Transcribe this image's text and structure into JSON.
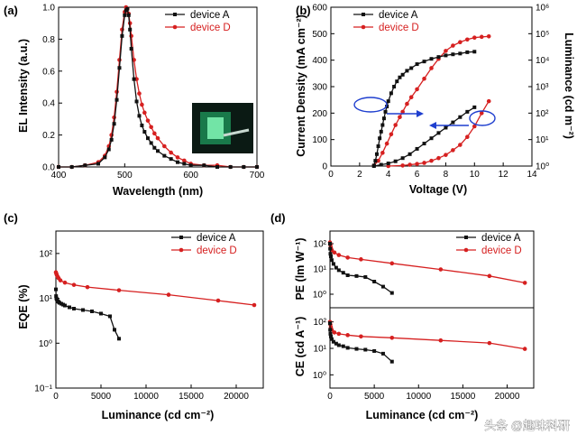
{
  "colors": {
    "device_A": "#111111",
    "device_D": "#d62020",
    "arrow": "#1f3fcf"
  },
  "watermark": "头条 @趣味科研",
  "chart_data": [
    {
      "panel": "(a)",
      "type": "line",
      "xlabel": "Wavelength (nm)",
      "ylabel": "EL Intensity (a.u.)",
      "xlim": [
        400,
        700
      ],
      "ylim": [
        0,
        1.0
      ],
      "xticks": [
        400,
        500,
        600,
        700
      ],
      "yticks": [
        0.0,
        0.2,
        0.4,
        0.6,
        0.8,
        1.0
      ],
      "xtick_labels": [
        "400",
        "500",
        "600",
        "700"
      ],
      "ytick_labels": [
        "0.0",
        "0.2",
        "0.4",
        "0.6",
        "0.8",
        "1.0"
      ],
      "legend": [
        "device A",
        "device D"
      ],
      "inset": "photo of green-emitting device",
      "series": [
        {
          "name": "device A",
          "x": [
            400,
            420,
            440,
            460,
            470,
            476,
            480,
            484,
            488,
            492,
            496,
            500,
            502,
            504,
            506,
            508,
            510,
            514,
            518,
            522,
            526,
            530,
            535,
            540,
            545,
            550,
            560,
            570,
            580,
            590,
            600,
            620,
            640,
            660,
            680,
            700
          ],
          "y": [
            0,
            0,
            0.01,
            0.02,
            0.06,
            0.11,
            0.17,
            0.27,
            0.42,
            0.62,
            0.82,
            0.95,
            0.98,
            0.99,
            0.95,
            0.86,
            0.74,
            0.55,
            0.41,
            0.32,
            0.26,
            0.22,
            0.18,
            0.15,
            0.12,
            0.1,
            0.07,
            0.05,
            0.03,
            0.02,
            0.01,
            0.01,
            0,
            0,
            0,
            0
          ]
        },
        {
          "name": "device D",
          "x": [
            400,
            420,
            440,
            460,
            470,
            476,
            480,
            484,
            488,
            492,
            496,
            500,
            502,
            504,
            506,
            508,
            510,
            514,
            518,
            522,
            526,
            530,
            535,
            540,
            545,
            550,
            560,
            570,
            580,
            590,
            600,
            620,
            640,
            660,
            680,
            700
          ],
          "y": [
            0,
            0,
            0.01,
            0.03,
            0.07,
            0.13,
            0.2,
            0.31,
            0.47,
            0.67,
            0.86,
            0.97,
            1.0,
            0.99,
            0.96,
            0.9,
            0.82,
            0.67,
            0.55,
            0.46,
            0.39,
            0.34,
            0.29,
            0.25,
            0.21,
            0.18,
            0.13,
            0.09,
            0.06,
            0.04,
            0.02,
            0.01,
            0.01,
            0,
            0,
            0
          ]
        }
      ]
    },
    {
      "panel": "(b)",
      "type": "line",
      "xlabel": "Voltage (V)",
      "ylabel": "Current Density (mA cm⁻²)",
      "y2label": "Luminance (cd m⁻²)",
      "xlim": [
        0,
        14
      ],
      "ylim": [
        0,
        600
      ],
      "y2lim_log10": [
        0,
        6
      ],
      "xticks": [
        0,
        2,
        4,
        6,
        8,
        10,
        12,
        14
      ],
      "yticks": [
        0,
        100,
        200,
        300,
        400,
        500,
        600
      ],
      "xtick_labels": [
        "0",
        "2",
        "4",
        "6",
        "8",
        "10",
        "12",
        "14"
      ],
      "ytick_labels": [
        "0",
        "100",
        "200",
        "300",
        "400",
        "500",
        "600"
      ],
      "y2tick_labels": [
        "10⁰",
        "10¹",
        "10²",
        "10³",
        "10⁴",
        "10⁵",
        "10⁶"
      ],
      "legend": [
        "device A",
        "device D"
      ],
      "current_density": [
        {
          "name": "device A",
          "x": [
            3,
            3.1,
            3.2,
            3.3,
            3.4,
            3.5,
            3.6,
            3.7,
            3.8,
            3.9,
            4,
            4.2,
            4.4,
            4.6,
            4.8,
            5,
            5.3,
            5.6,
            6,
            6.5,
            7,
            7.5,
            8,
            8.5,
            9,
            9.5,
            10
          ],
          "y": [
            2,
            20,
            45,
            75,
            105,
            130,
            155,
            180,
            205,
            225,
            245,
            275,
            300,
            320,
            335,
            345,
            360,
            370,
            385,
            395,
            405,
            412,
            418,
            422,
            425,
            430,
            432
          ]
        },
        {
          "name": "device D",
          "x": [
            3,
            3.3,
            3.6,
            3.9,
            4.2,
            4.5,
            4.8,
            5,
            5.3,
            5.6,
            6,
            6.5,
            7,
            7.5,
            8,
            8.5,
            9,
            9.5,
            10,
            10.5,
            11
          ],
          "y": [
            2,
            20,
            50,
            85,
            120,
            155,
            185,
            205,
            235,
            260,
            290,
            330,
            370,
            405,
            435,
            455,
            468,
            478,
            485,
            488,
            490
          ]
        }
      ],
      "luminance_log10": [
        {
          "name": "device A",
          "x": [
            3,
            3.5,
            4,
            4.5,
            5,
            5.5,
            6,
            6.5,
            7,
            7.5,
            8,
            8.5,
            9,
            9.5,
            10
          ],
          "y": [
            0,
            0.05,
            0.1,
            0.18,
            0.3,
            0.45,
            0.65,
            0.85,
            1.05,
            1.25,
            1.45,
            1.65,
            1.85,
            2.05,
            2.22
          ]
        },
        {
          "name": "device D",
          "x": [
            4,
            5,
            5.5,
            6,
            6.5,
            7,
            7.5,
            8,
            8.5,
            9,
            9.5,
            10,
            10.5,
            11
          ],
          "y": [
            0,
            0.02,
            0.05,
            0.08,
            0.12,
            0.2,
            0.3,
            0.42,
            0.6,
            0.8,
            1.1,
            1.5,
            2.0,
            2.45
          ]
        }
      ],
      "annotations": [
        "ellipse around current-density curves with arrow pointing right to right axis",
        "ellipse around luminance curves with arrow pointing left"
      ]
    },
    {
      "panel": "(c)",
      "type": "line",
      "xlabel": "Luminance (cd cm⁻²)",
      "ylabel": "EQE (%)",
      "xlim": [
        0,
        23000
      ],
      "ylim_log10": [
        -1,
        2.5
      ],
      "xticks": [
        0,
        5000,
        10000,
        15000,
        20000
      ],
      "xtick_labels": [
        "0",
        "5000",
        "10000",
        "15000",
        "20000"
      ],
      "ytick_labels": [
        "10⁻¹",
        "10⁰",
        "10¹",
        "10²"
      ],
      "legend": [
        "device A",
        "device D"
      ],
      "series": [
        {
          "name": "device A",
          "x": [
            0,
            20,
            50,
            100,
            150,
            200,
            300,
            400,
            600,
            800,
            1000,
            1500,
            2000,
            3000,
            4000,
            5000,
            6000,
            6500,
            7000
          ],
          "y": [
            1.2,
            1.05,
            1.0,
            0.98,
            0.95,
            0.93,
            0.92,
            0.9,
            0.88,
            0.86,
            0.84,
            0.8,
            0.77,
            0.74,
            0.71,
            0.66,
            0.6,
            0.3,
            0.1
          ]
        },
        {
          "name": "device D",
          "x": [
            0,
            50,
            100,
            200,
            300,
            500,
            1000,
            2000,
            3500,
            7000,
            12500,
            18000,
            22000
          ],
          "y": [
            1.58,
            1.55,
            1.52,
            1.48,
            1.45,
            1.4,
            1.35,
            1.3,
            1.25,
            1.18,
            1.08,
            0.95,
            0.85
          ]
        }
      ]
    },
    {
      "panel": "(d)",
      "type": "line",
      "xlabel": "Luminance (cd cm⁻²)",
      "xlim": [
        0,
        23000
      ],
      "xticks": [
        0,
        5000,
        10000,
        15000,
        20000
      ],
      "xtick_labels": [
        "0",
        "5000",
        "10000",
        "15000",
        "20000"
      ],
      "legend": [
        "device A",
        "device D"
      ],
      "subplots": [
        {
          "ylabel": "PE (lm W⁻¹)",
          "ylim_log10": [
            -0.5,
            2.5
          ],
          "ytick_labels": [
            "10⁰",
            "10¹",
            "10²"
          ],
          "series": [
            {
              "name": "device A",
              "x": [
                0,
                20,
                50,
                100,
                200,
                400,
                700,
                1000,
                1500,
                2000,
                3000,
                4000,
                5000,
                6000,
                7000
              ],
              "y": [
                2.0,
                1.8,
                1.6,
                1.5,
                1.35,
                1.2,
                1.05,
                0.95,
                0.85,
                0.75,
                0.72,
                0.68,
                0.5,
                0.3,
                0.05
              ]
            },
            {
              "name": "device D",
              "x": [
                0,
                50,
                100,
                200,
                500,
                1000,
                2000,
                3500,
                7000,
                12500,
                18000,
                22000
              ],
              "y": [
                2.05,
                1.95,
                1.85,
                1.75,
                1.65,
                1.55,
                1.45,
                1.38,
                1.22,
                0.98,
                0.72,
                0.45
              ]
            }
          ]
        },
        {
          "ylabel": "CE (cd A⁻¹)",
          "ylim_log10": [
            -0.5,
            2.5
          ],
          "ytick_labels": [
            "10⁰",
            "10¹",
            "10²"
          ],
          "series": [
            {
              "name": "device A",
              "x": [
                0,
                20,
                50,
                100,
                200,
                400,
                700,
                1000,
                1500,
                2000,
                3000,
                4000,
                5000,
                6000,
                7000
              ],
              "y": [
                1.95,
                1.7,
                1.55,
                1.45,
                1.35,
                1.25,
                1.18,
                1.12,
                1.08,
                1.02,
                0.98,
                0.95,
                0.9,
                0.8,
                0.5
              ]
            },
            {
              "name": "device D",
              "x": [
                0,
                50,
                100,
                200,
                500,
                1000,
                2000,
                3500,
                7000,
                12500,
                18000,
                22000
              ],
              "y": [
                2.0,
                1.9,
                1.8,
                1.7,
                1.6,
                1.55,
                1.5,
                1.45,
                1.4,
                1.3,
                1.2,
                0.98
              ]
            }
          ]
        }
      ]
    }
  ]
}
